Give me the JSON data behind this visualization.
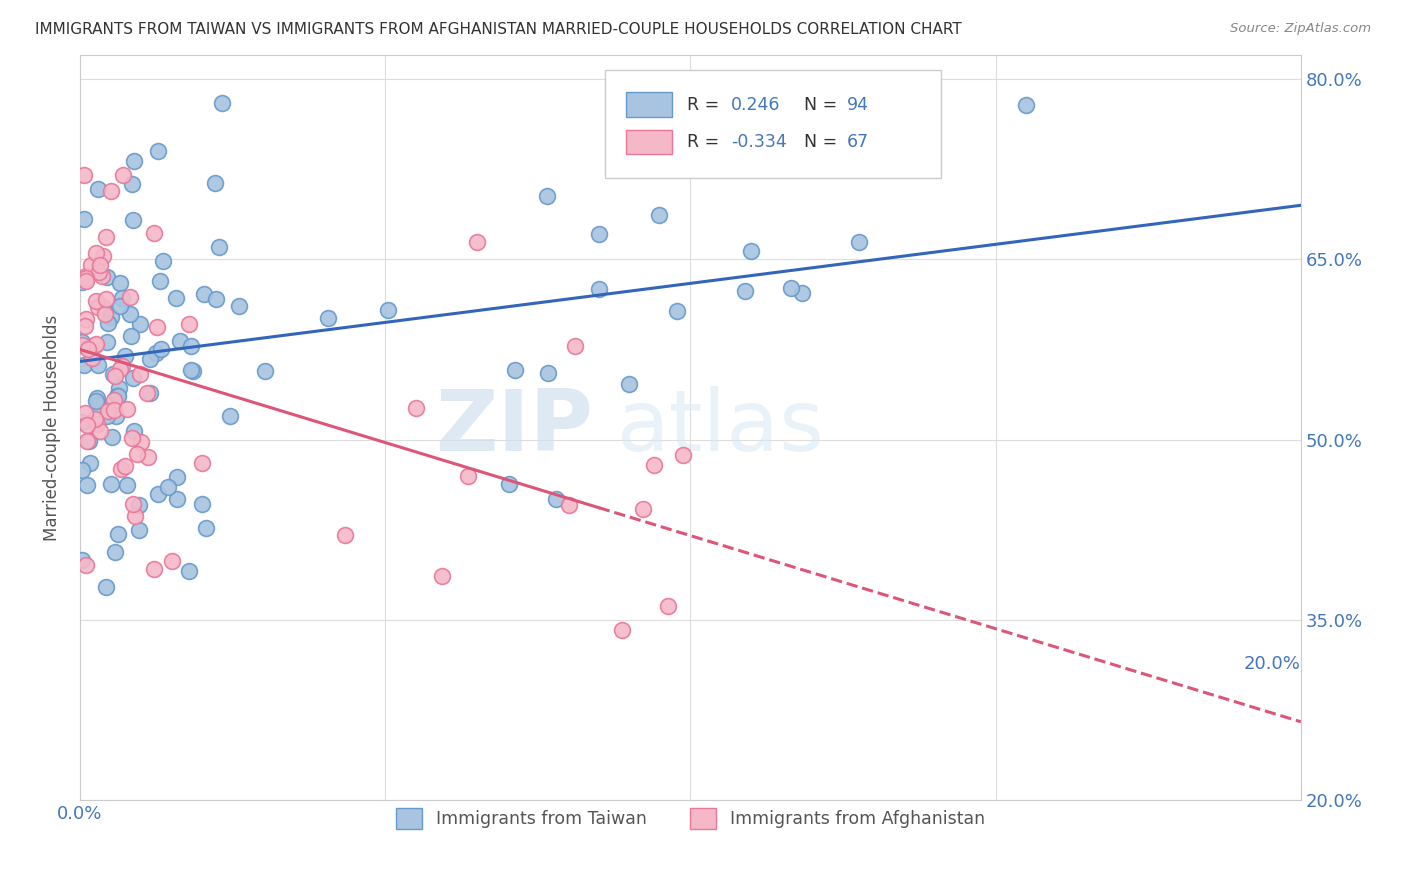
{
  "title": "IMMIGRANTS FROM TAIWAN VS IMMIGRANTS FROM AFGHANISTAN MARRIED-COUPLE HOUSEHOLDS CORRELATION CHART",
  "source": "Source: ZipAtlas.com",
  "ylabel": "Married-couple Households",
  "xlim": [
    0.0,
    0.2
  ],
  "ylim": [
    0.2,
    0.82
  ],
  "yticks": [
    0.2,
    0.35,
    0.5,
    0.65,
    0.8
  ],
  "xticks": [
    0.0,
    0.05,
    0.1,
    0.15,
    0.2
  ],
  "taiwan_color": "#a8c4e0",
  "taiwan_edge": "#6699cc",
  "afghanistan_color": "#f5b8c8",
  "afghanistan_edge": "#e87799",
  "taiwan_R": 0.246,
  "taiwan_N": 94,
  "afghanistan_R": -0.334,
  "afghanistan_N": 67,
  "taiwan_line_color": "#3366bb",
  "afghanistan_line_color": "#dd5577",
  "watermark_zip": "ZIP",
  "watermark_atlas": "atlas",
  "legend_taiwan_label": "Immigrants from Taiwan",
  "legend_afghanistan_label": "Immigrants from Afghanistan",
  "background_color": "#ffffff",
  "grid_color": "#dddddd",
  "title_color": "#333333",
  "tick_color": "#4477bb",
  "ylabel_color": "#555555",
  "taiwan_line_intercept": 0.565,
  "taiwan_line_slope": 0.65,
  "afghanistan_line_intercept": 0.575,
  "afghanistan_line_slope": -1.55
}
